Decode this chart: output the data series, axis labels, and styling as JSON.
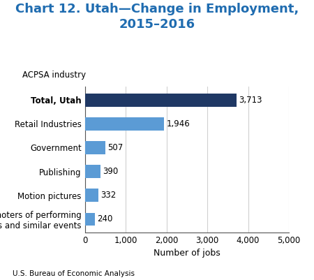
{
  "title": "Chart 12. Utah—Change in Employment,\n2015–2016",
  "ylabel_label": "ACPSA industry",
  "xlabel_label": "Number of jobs",
  "footer": "U.S. Bureau of Economic Analysis",
  "categories": [
    "Promoters of performing\narts and similar events",
    "Motion pictures",
    "Publishing",
    "Government",
    "Retail Industries",
    "Total, Utah"
  ],
  "values": [
    240,
    332,
    390,
    507,
    1946,
    3713
  ],
  "bar_colors": [
    "#5b9bd5",
    "#5b9bd5",
    "#5b9bd5",
    "#5b9bd5",
    "#5b9bd5",
    "#1f3864"
  ],
  "bar_labels": [
    "240",
    "332",
    "390",
    "507",
    "1,946",
    "3,713"
  ],
  "xlim": [
    0,
    5000
  ],
  "xticks": [
    0,
    1000,
    2000,
    3000,
    4000,
    5000
  ],
  "xtick_labels": [
    "0",
    "1,000",
    "2,000",
    "3,000",
    "4,000",
    "5,000"
  ],
  "title_color": "#1f6cb0",
  "title_fontsize": 13,
  "ylabel_fontsize": 8.5,
  "xlabel_fontsize": 9,
  "tick_fontsize": 8.5,
  "label_fontsize": 8.5,
  "footer_fontsize": 7.5,
  "background_color": "#ffffff",
  "grid_color": "#d0d0d0"
}
